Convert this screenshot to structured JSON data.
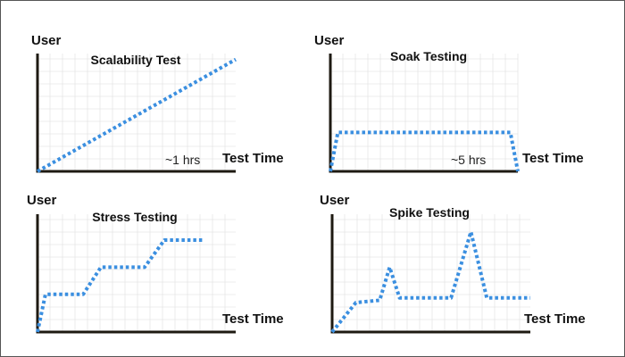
{
  "colors": {
    "series": "#3b8fe0",
    "axis": "#1e1a12",
    "grid": "#e6e6e6",
    "frame": "#555555"
  },
  "chart_data": [
    {
      "type": "line",
      "title": "Scalability Test",
      "ylabel": "User",
      "xlabel": "Test Time",
      "annotation": "~1 hrs",
      "grid": true,
      "xlim": [
        0,
        100
      ],
      "ylim": [
        0,
        100
      ],
      "series": [
        {
          "x": [
            0,
            100
          ],
          "y": [
            0,
            95
          ]
        }
      ]
    },
    {
      "type": "line",
      "title": "Soak Testing",
      "ylabel": "User",
      "xlabel": "Test Time",
      "annotation": "~5 hrs",
      "grid": true,
      "xlim": [
        0,
        100
      ],
      "ylim": [
        0,
        100
      ],
      "series": [
        {
          "x": [
            0,
            4,
            96,
            100
          ],
          "y": [
            0,
            33,
            33,
            0
          ]
        }
      ]
    },
    {
      "type": "line",
      "title": "Stress Testing",
      "ylabel": "User",
      "xlabel": "Test Time",
      "annotation": "",
      "grid": true,
      "xlim": [
        0,
        100
      ],
      "ylim": [
        0,
        100
      ],
      "series": [
        {
          "x": [
            0,
            4,
            23,
            32,
            54,
            64,
            84
          ],
          "y": [
            0,
            32,
            32,
            55,
            55,
            78,
            78
          ]
        }
      ]
    },
    {
      "type": "line",
      "title": "Spike Testing",
      "ylabel": "User",
      "xlabel": "Test Time",
      "annotation": "",
      "grid": true,
      "xlim": [
        0,
        100
      ],
      "ylim": [
        0,
        100
      ],
      "series": [
        {
          "x": [
            0,
            12,
            24,
            29,
            34,
            42,
            60,
            70,
            78,
            84,
            100
          ],
          "y": [
            0,
            25,
            27,
            55,
            29,
            29,
            29,
            85,
            29,
            29,
            29
          ]
        }
      ]
    }
  ]
}
